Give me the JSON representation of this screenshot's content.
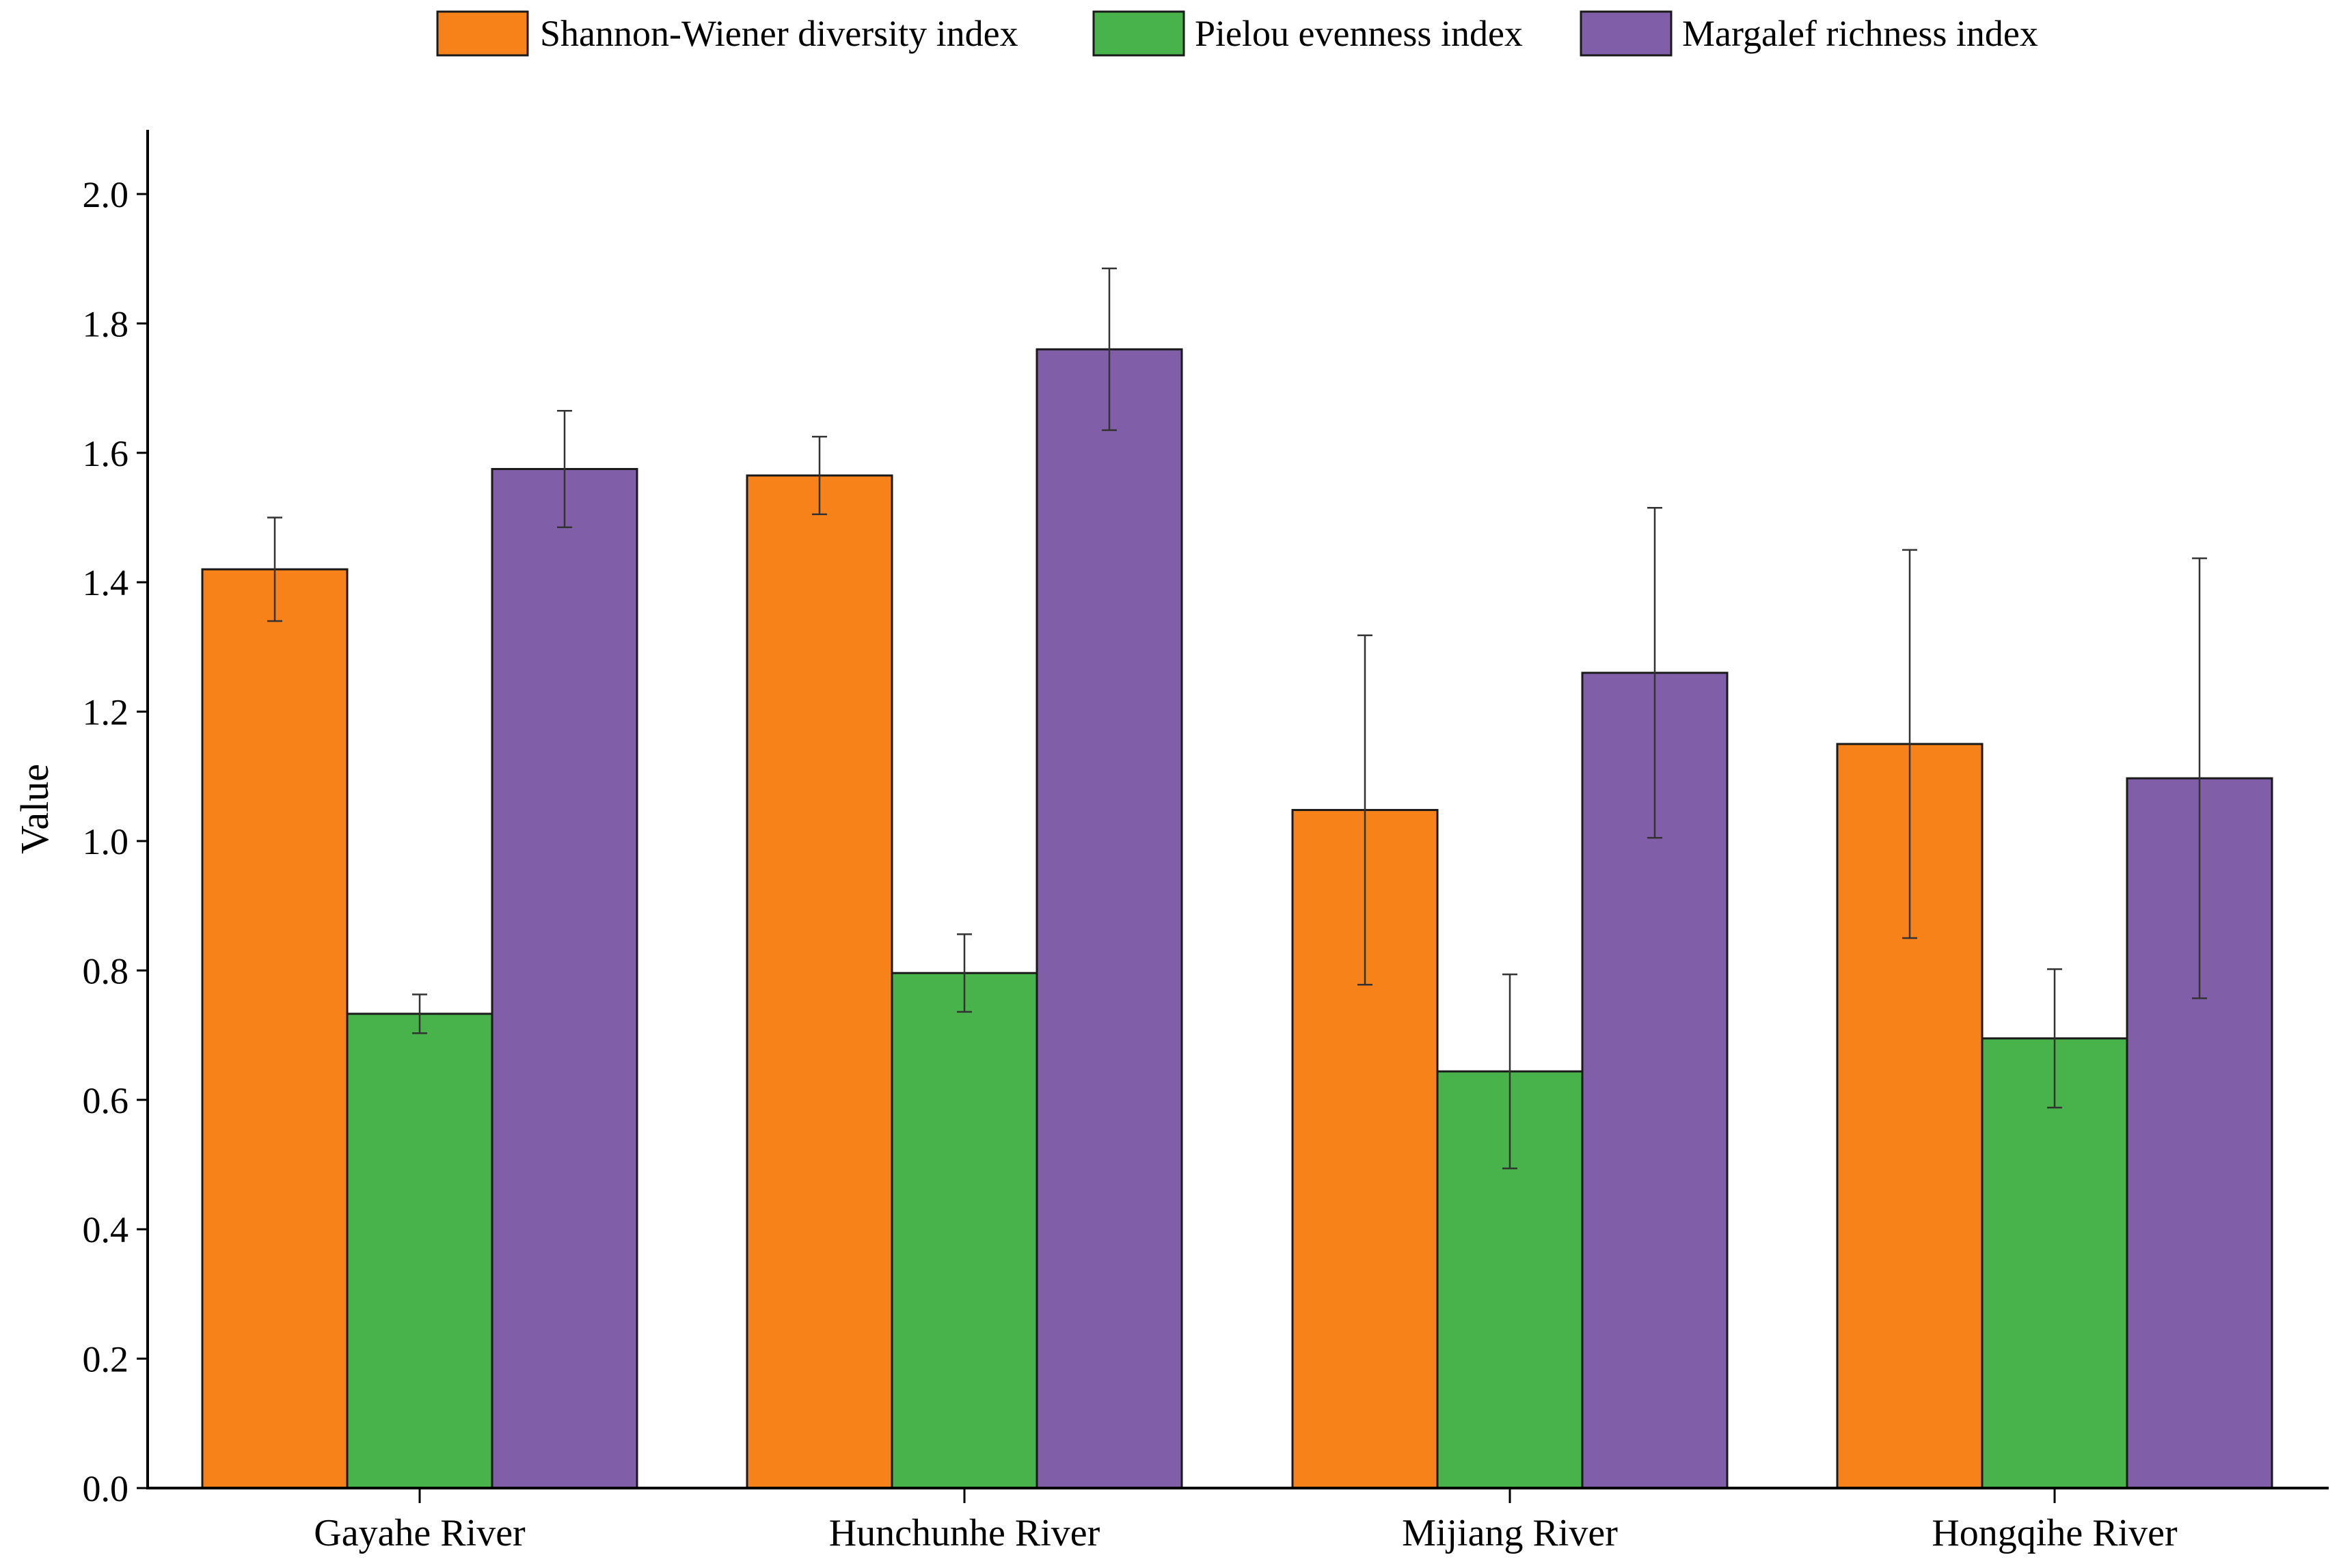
{
  "chart_data": {
    "type": "bar",
    "title": "",
    "xlabel": "",
    "ylabel": "Value",
    "ylim": [
      0,
      2.1
    ],
    "yticks": [
      0.0,
      0.2,
      0.4,
      0.6,
      0.8,
      1.0,
      1.2,
      1.4,
      1.6,
      1.8,
      2.0
    ],
    "ytick_labels": [
      "0.0",
      "0.2",
      "0.4",
      "0.6",
      "0.8",
      "1.0",
      "1.2",
      "1.4",
      "1.6",
      "1.8",
      "2.0"
    ],
    "grid": false,
    "legend_position": "top-center",
    "categories": [
      "Gayahe River",
      "Hunchunhe River",
      "Mijiang River",
      "Hongqihe River"
    ],
    "series": [
      {
        "name": "Shannon-Wiener diversity index",
        "color": "#F8821A",
        "values": [
          1.42,
          1.565,
          1.048,
          1.15
        ],
        "errors": [
          0.08,
          0.06,
          0.27,
          0.3
        ]
      },
      {
        "name": "Pielou evenness index",
        "color": "#47B34A",
        "values": [
          0.733,
          0.796,
          0.644,
          0.695
        ],
        "errors": [
          0.03,
          0.06,
          0.15,
          0.107
        ]
      },
      {
        "name": "Margalef richness index",
        "color": "#805EA8",
        "values": [
          1.575,
          1.76,
          1.26,
          1.097
        ],
        "errors": [
          0.09,
          0.125,
          0.255,
          0.34
        ]
      }
    ]
  }
}
